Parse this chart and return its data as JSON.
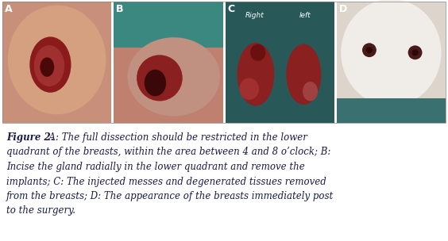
{
  "figure_width": 5.64,
  "figure_height": 3.04,
  "dpi": 100,
  "background_color": "#ffffff",
  "panels": [
    {
      "label": "A"
    },
    {
      "label": "B"
    },
    {
      "label": "C"
    },
    {
      "label": "D"
    }
  ],
  "panel_label_color": "#ffffff",
  "panel_label_fontsize": 9,
  "caption_bold": "Figure 2.",
  "caption_lines": [
    "  A: The full dissection should be restricted in the lower",
    "quadrant of the breasts, within the area between 4 and 8 o’clock; B:",
    "Incise the gland radially in the lower quadrant and remove the",
    "implants; C: The injected messes and degenerated tissues removed",
    "from the breasts; D: The appearance of the breasts immediately post",
    "to the surgery."
  ],
  "caption_fontsize": 8.5,
  "caption_color": "#1a1a4a",
  "right_label": "Right",
  "left_label": "left"
}
